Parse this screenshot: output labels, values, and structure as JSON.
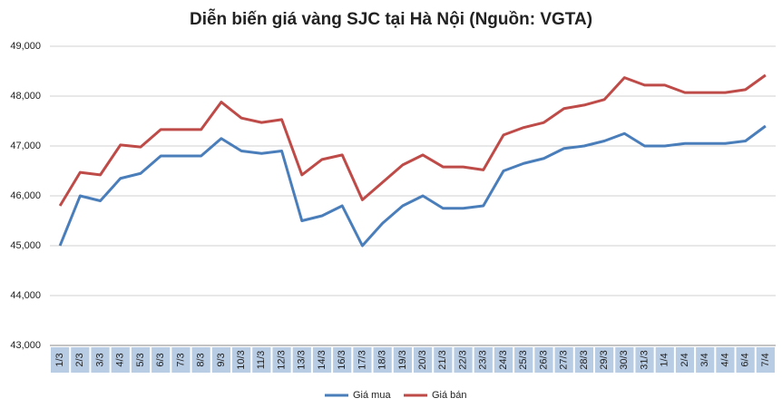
{
  "chart_data": {
    "type": "line",
    "title": "Diễn biến giá vàng SJC tại Hà Nội (Nguồn: VGTA)",
    "categories": [
      "1/3",
      "2/3",
      "3/3",
      "4/3",
      "5/3",
      "6/3",
      "7/3",
      "8/3",
      "9/3",
      "10/3",
      "11/3",
      "12/3",
      "13/3",
      "14/3",
      "16/3",
      "17/3",
      "18/3",
      "19/3",
      "20/3",
      "21/3",
      "22/3",
      "23/3",
      "24/3",
      "25/3",
      "26/3",
      "27/3",
      "28/3",
      "29/3",
      "30/3",
      "31/3",
      "1/4",
      "2/4",
      "3/4",
      "4/4",
      "6/4",
      "7/4"
    ],
    "series": [
      {
        "name": "Giá mua",
        "color": "#4a7ebb",
        "values": [
          45000,
          46000,
          45900,
          46350,
          46450,
          46800,
          46800,
          46800,
          47150,
          46900,
          46850,
          46900,
          45500,
          45600,
          45800,
          45000,
          45450,
          45800,
          46000,
          45750,
          45750,
          45800,
          46500,
          46650,
          46750,
          46950,
          47000,
          47100,
          47250,
          47000,
          47000,
          47050,
          47050,
          47050,
          47100,
          47400
        ]
      },
      {
        "name": "Giá bán",
        "color": "#be4b48",
        "values": [
          45800,
          46470,
          46420,
          47020,
          46980,
          47330,
          47330,
          47330,
          47880,
          47560,
          47470,
          47530,
          46420,
          46730,
          46820,
          45920,
          46270,
          46620,
          46820,
          46580,
          46580,
          46520,
          47220,
          47370,
          47470,
          47750,
          47820,
          47930,
          48370,
          48220,
          48220,
          48070,
          48070,
          48070,
          48130,
          48420
        ]
      }
    ],
    "ylim": [
      43000,
      49000
    ],
    "yticks": [
      {
        "value": 43000,
        "label": "43,000"
      },
      {
        "value": 44000,
        "label": "44,000"
      },
      {
        "value": 45000,
        "label": "45,000"
      },
      {
        "value": 46000,
        "label": "46,000"
      },
      {
        "value": 47000,
        "label": "47,000"
      },
      {
        "value": 48000,
        "label": "48,000"
      },
      {
        "value": 49000,
        "label": "49,000"
      }
    ],
    "grid": true,
    "legend": "bottom"
  }
}
